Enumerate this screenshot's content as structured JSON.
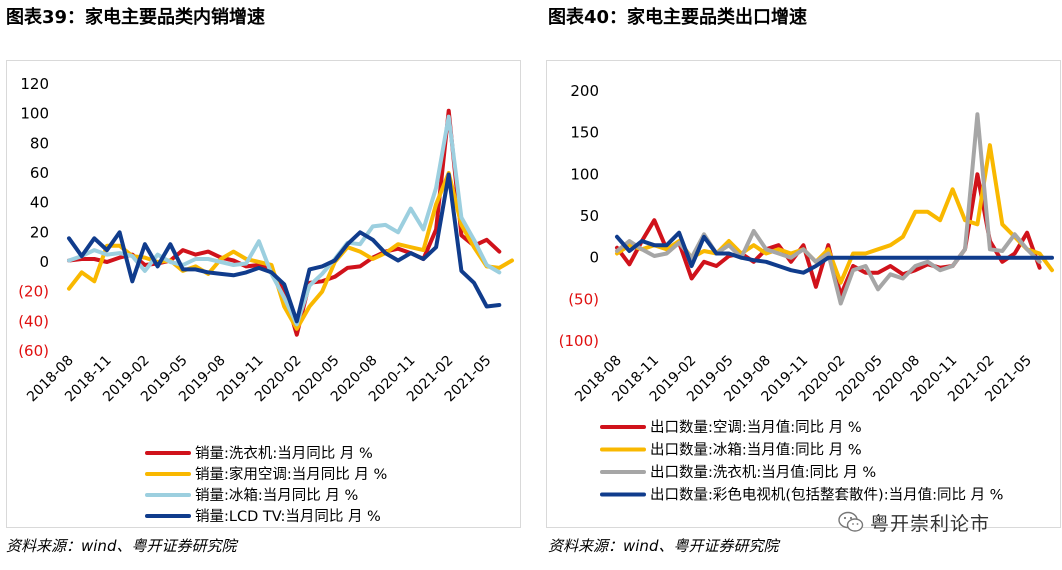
{
  "left_title": "图表39：家电主要品类内销增速",
  "right_title": "图表40：家电主要品类出口增速",
  "left_source": "资料来源：wind、粤开证券研究院",
  "right_source": "资料来源：wind、粤开证券研究院",
  "watermark": "粤开崇利论市",
  "colors": {
    "red": "#d0121b",
    "yellow": "#f9b800",
    "lightblue": "#9ccfdf",
    "navy": "#103c8c",
    "gray": "#a6a6a6",
    "negative": "#e01010"
  },
  "chart_data": [
    {
      "type": "line",
      "ylim": [
        -60,
        120
      ],
      "yticks": [
        120,
        100,
        80,
        60,
        40,
        20,
        0,
        -20,
        -40,
        -60
      ],
      "ytick_labels": [
        "120",
        "100",
        "80",
        "60",
        "40",
        "20",
        "0",
        "(20)",
        "(40)",
        "(60)"
      ],
      "x": [
        "2018-08",
        "2018-09",
        "2018-10",
        "2018-11",
        "2018-12",
        "2019-01",
        "2019-02",
        "2019-03",
        "2019-04",
        "2019-05",
        "2019-06",
        "2019-07",
        "2019-08",
        "2019-09",
        "2019-10",
        "2019-11",
        "2019-12",
        "2020-01",
        "2020-02",
        "2020-03",
        "2020-04",
        "2020-05",
        "2020-06",
        "2020-07",
        "2020-08",
        "2020-09",
        "2020-10",
        "2020-11",
        "2020-12",
        "2021-01",
        "2021-02",
        "2021-03",
        "2021-04",
        "2021-05",
        "2021-06",
        "2021-07"
      ],
      "xtick_labels": [
        "2018-08",
        "2018-11",
        "2019-02",
        "2019-05",
        "2019-08",
        "2019-11",
        "2020-02",
        "2020-05",
        "2020-08",
        "2020-11",
        "2021-02",
        "2021-05"
      ],
      "legend_position": "bottom",
      "series": [
        {
          "name": "销量:洗衣机:当月同比 月 %",
          "color": "red",
          "values": [
            1,
            2,
            2,
            0,
            3,
            5,
            -2,
            -1,
            1,
            8,
            5,
            7,
            3,
            1,
            -3,
            -2,
            -5,
            -20,
            -49,
            -14,
            -13,
            -10,
            -4,
            -3,
            3,
            7,
            9,
            6,
            2,
            22,
            102,
            18,
            11,
            15,
            7,
            null
          ]
        },
        {
          "name": "销量:家用空调:当月同比 月 %",
          "color": "yellow",
          "values": [
            -18,
            -7,
            -13,
            11,
            11,
            4,
            3,
            0,
            1,
            -6,
            -3,
            -8,
            2,
            7,
            2,
            0,
            -2,
            -30,
            -45,
            -30,
            -20,
            0,
            10,
            7,
            2,
            6,
            12,
            10,
            8,
            39,
            60,
            25,
            10,
            -3,
            -4,
            1
          ]
        },
        {
          "name": "销量:冰箱:当月同比 月 %",
          "color": "lightblue",
          "values": [
            1,
            4,
            8,
            5,
            6,
            4,
            -6,
            5,
            0,
            -2,
            2,
            2,
            0,
            -2,
            -1,
            14,
            -8,
            -24,
            -42,
            -16,
            -8,
            2,
            13,
            12,
            24,
            25,
            20,
            36,
            22,
            50,
            98,
            30,
            15,
            -2,
            -7,
            null
          ]
        },
        {
          "name": "销量:LCD TV:当月同比 月 %",
          "color": "navy",
          "values": [
            16,
            4,
            16,
            8,
            20,
            -13,
            12,
            -3,
            12,
            -5,
            -5,
            -7,
            -8,
            -9,
            -7,
            -4,
            -7,
            -15,
            -40,
            -5,
            -3,
            1,
            12,
            20,
            15,
            6,
            1,
            6,
            2,
            10,
            59,
            -6,
            -14,
            -30,
            -29,
            null
          ]
        }
      ]
    },
    {
      "type": "line",
      "ylim": [
        -100,
        200
      ],
      "yticks": [
        200,
        150,
        100,
        50,
        0,
        -50,
        -100
      ],
      "ytick_labels": [
        "200",
        "150",
        "100",
        "50",
        "0",
        "(50)",
        "(100)"
      ],
      "x": [
        "2018-08",
        "2018-09",
        "2018-10",
        "2018-11",
        "2018-12",
        "2019-01",
        "2019-02",
        "2019-03",
        "2019-04",
        "2019-05",
        "2019-06",
        "2019-07",
        "2019-08",
        "2019-09",
        "2019-10",
        "2019-11",
        "2019-12",
        "2020-01",
        "2020-02",
        "2020-03",
        "2020-04",
        "2020-05",
        "2020-06",
        "2020-07",
        "2020-08",
        "2020-09",
        "2020-10",
        "2020-11",
        "2020-12",
        "2021-01",
        "2021-02",
        "2021-03",
        "2021-04",
        "2021-05",
        "2021-06",
        "2021-07"
      ],
      "xtick_labels": [
        "2018-08",
        "2018-11",
        "2019-02",
        "2019-05",
        "2019-08",
        "2019-11",
        "2020-02",
        "2020-05",
        "2020-08",
        "2020-11",
        "2021-02",
        "2021-05"
      ],
      "legend_position": "bottom",
      "series": [
        {
          "name": "出口数量:空调:当月值:同比 月 %",
          "color": "red",
          "values": [
            12,
            -8,
            20,
            45,
            10,
            18,
            -25,
            -5,
            -10,
            2,
            5,
            -5,
            10,
            15,
            -5,
            15,
            -35,
            15,
            -45,
            -10,
            -18,
            -18,
            -10,
            -20,
            -15,
            -8,
            -12,
            -10,
            10,
            100,
            20,
            -5,
            5,
            30,
            -12,
            null
          ]
        },
        {
          "name": "出口数量:冰箱:当月值:同比 月 %",
          "color": "yellow",
          "values": [
            5,
            15,
            10,
            15,
            10,
            20,
            0,
            8,
            5,
            20,
            5,
            15,
            5,
            10,
            5,
            10,
            -5,
            10,
            -30,
            5,
            5,
            10,
            15,
            25,
            55,
            55,
            45,
            82,
            45,
            40,
            135,
            40,
            25,
            10,
            5,
            -15
          ]
        },
        {
          "name": "出口数量:洗衣机:当月值:同比 月 %",
          "color": "gray",
          "values": [
            8,
            20,
            10,
            2,
            5,
            18,
            0,
            28,
            5,
            15,
            0,
            32,
            10,
            5,
            0,
            10,
            -5,
            5,
            -55,
            -15,
            -10,
            -38,
            -20,
            -25,
            -10,
            -5,
            -15,
            -10,
            10,
            172,
            10,
            8,
            28,
            10,
            -5,
            null
          ]
        },
        {
          "name": "出口数量:彩色电视机(包括整套散件):当月值:同比 月 %",
          "color": "navy",
          "values": [
            25,
            8,
            20,
            15,
            15,
            30,
            -10,
            25,
            5,
            5,
            0,
            -3,
            -5,
            -10,
            -15,
            -18,
            -10,
            0,
            0,
            0,
            0,
            0,
            0,
            0,
            0,
            0,
            0,
            0,
            0,
            0,
            0,
            0,
            0,
            0,
            0,
            0
          ]
        }
      ]
    }
  ]
}
